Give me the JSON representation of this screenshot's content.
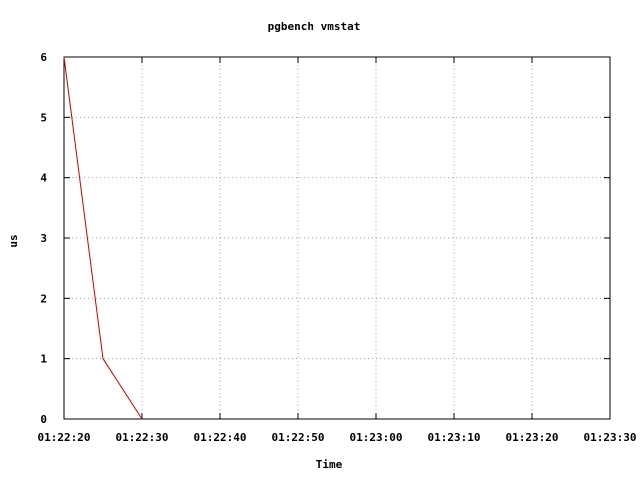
{
  "chart_data": {
    "type": "line",
    "title": "pgbench vmstat",
    "xlabel": "Time",
    "ylabel": "us",
    "x_ticks": [
      "01:22:20",
      "01:22:30",
      "01:22:40",
      "01:22:50",
      "01:23:00",
      "01:23:10",
      "01:23:20",
      "01:23:30"
    ],
    "y_ticks": [
      "0",
      "1",
      "2",
      "3",
      "4",
      "5",
      "6"
    ],
    "xlim": [
      "01:22:20",
      "01:23:30"
    ],
    "ylim": [
      0,
      6
    ],
    "grid": true,
    "series": [
      {
        "color": "#cc0000",
        "x": [
          "01:22:20",
          "01:22:25",
          "01:22:30"
        ],
        "y": [
          6,
          1,
          0
        ]
      }
    ]
  }
}
